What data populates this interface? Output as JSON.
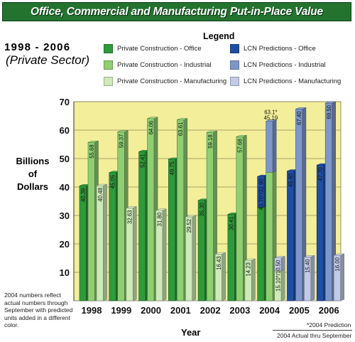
{
  "title": "Office, Commercial and Manufacturing Put-in-Place Value",
  "years_label": "1998 - 2006",
  "sector_label": "(Private Sector)",
  "legend_title": "Legend",
  "legend": [
    {
      "label": "Private Construction - Office",
      "color": "#2e9a3a"
    },
    {
      "label": "Private Construction - Industrial",
      "color": "#8fcf72"
    },
    {
      "label": "Private Construction - Manufacturing",
      "color": "#cdeab8"
    },
    {
      "label": "LCN Predictions - Office",
      "color": "#1f4fa3"
    },
    {
      "label": "LCN Predictions - Industrial",
      "color": "#7d97cb"
    },
    {
      "label": "LCN Predictions - Manufacturing",
      "color": "#c1cbe7"
    }
  ],
  "y_axis_title": [
    "Billions",
    "of",
    "Dollars"
  ],
  "x_axis_title": "Year",
  "note": "2004 numbers reflect actual numbers through September with predicted units added in a different color.",
  "footnote_1": "*2004 Prediction",
  "footnote_2": "2004 Actual thru September",
  "colors": {
    "plot_background": "#f3ee9a",
    "banner": "#23732f",
    "office": "#2e9a3a",
    "industrial": "#8fcf72",
    "manufacturing": "#cdeab8",
    "lcn_office": "#1f4fa3",
    "lcn_industrial": "#7d97cb",
    "lcn_manufacturing": "#c1cbe7"
  },
  "chart_data": {
    "type": "bar",
    "categories": [
      "1998",
      "1999",
      "2000",
      "2001",
      "2002",
      "2003",
      "2004",
      "2005",
      "2006"
    ],
    "ylim": [
      0,
      70
    ],
    "yticks": [
      10,
      20,
      30,
      40,
      50,
      60,
      70
    ],
    "grid": true,
    "series": [
      {
        "name": "Private Construction - Office",
        "values": [
          40.39,
          45.05,
          52.41,
          49.75,
          35.3,
          30.41,
          null,
          null,
          null
        ]
      },
      {
        "name": "Private Construction - Industrial",
        "values": [
          55.68,
          59.37,
          64.06,
          63.61,
          59.18,
          57.68,
          null,
          null,
          null
        ]
      },
      {
        "name": "Private Construction - Manufacturing",
        "values": [
          40.48,
          32.63,
          31.8,
          29.52,
          16.43,
          14.23,
          null,
          null,
          null
        ]
      },
      {
        "name": "LCN Predictions - Office",
        "values": [
          null,
          null,
          null,
          null,
          null,
          null,
          43.7,
          45.6,
          47.7
        ]
      },
      {
        "name": "LCN Predictions - Industrial",
        "values": [
          null,
          null,
          null,
          null,
          null,
          null,
          63.1,
          67.4,
          69.5
        ]
      },
      {
        "name": "LCN Predictions - Manufacturing",
        "values": [
          null,
          null,
          null,
          null,
          null,
          null,
          15.1,
          15.4,
          16.0
        ]
      }
    ],
    "actual_2004_thru_september": {
      "office": 32.9,
      "industrial": 45.19,
      "manufacturing": 10.5
    },
    "bar_labels": {
      "1998": [
        "40.39",
        "55.68",
        "40.48"
      ],
      "1999": [
        "45.05",
        "59.37",
        "32.63"
      ],
      "2000": [
        "52.41",
        "64.06",
        "31.80"
      ],
      "2001": [
        "49.75",
        "63.61",
        "29.52"
      ],
      "2002": [
        "35.30",
        "59.18",
        "16.43"
      ],
      "2003": [
        "30.41",
        "57.68",
        "14.23"
      ],
      "2004": [
        "43.70*/32.90",
        "63.1*",
        "15.10*/10.50"
      ],
      "2005": [
        "45.60",
        "67.40",
        "15.40"
      ],
      "2006": [
        "47.70",
        "69.50",
        "16.00"
      ]
    },
    "extra_2004_label": "45.19"
  }
}
